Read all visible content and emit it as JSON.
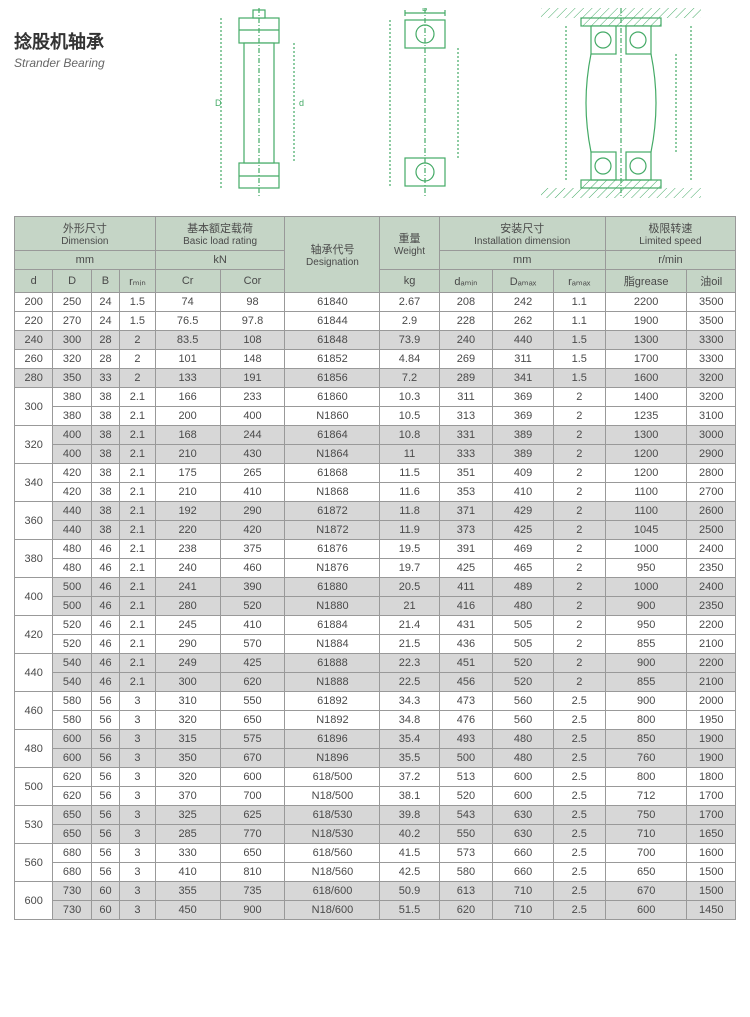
{
  "title": {
    "cn": "捻股机轴承",
    "en": "Strander Bearing"
  },
  "headers": {
    "group1": {
      "cn": "外形尺寸",
      "en": "Dimension",
      "unit": "mm"
    },
    "group2": {
      "cn": "基本额定载荷",
      "en": "Basic load rating",
      "unit": "kN"
    },
    "designation": {
      "cn": "轴承代号",
      "en": "Designation"
    },
    "weight": {
      "cn": "重量",
      "en": "Weight",
      "unit": "kg"
    },
    "group3": {
      "cn": "安装尺寸",
      "en": "Installation dimension",
      "unit": "mm"
    },
    "group4": {
      "cn": "极限转速",
      "en": "Limited speed",
      "unit": "r/min"
    },
    "cols": {
      "d": "d",
      "D": "D",
      "B": "B",
      "rmin": "rₘᵢₙ",
      "Cr": "Cr",
      "Cor": "Cor",
      "damin": "dₐₘᵢₙ",
      "Damax": "Dₐₘₐₓ",
      "ramax": "rₐₘₐₓ",
      "grease": "脂grease",
      "oil": "油oil"
    }
  },
  "rows": [
    {
      "d": "200",
      "D": "250",
      "B": "24",
      "rmin": "1.5",
      "Cr": "74",
      "Cor": "98",
      "des": "61840",
      "kg": "2.67",
      "damin": "208",
      "Damax": "242",
      "ramax": "1.1",
      "grease": "2200",
      "oil": "3500",
      "shade": false,
      "merge": 1
    },
    {
      "d": "220",
      "D": "270",
      "B": "24",
      "rmin": "1.5",
      "Cr": "76.5",
      "Cor": "97.8",
      "des": "61844",
      "kg": "2.9",
      "damin": "228",
      "Damax": "262",
      "ramax": "1.1",
      "grease": "1900",
      "oil": "3500",
      "shade": false,
      "merge": 1
    },
    {
      "d": "240",
      "D": "300",
      "B": "28",
      "rmin": "2",
      "Cr": "83.5",
      "Cor": "108",
      "des": "61848",
      "kg": "73.9",
      "damin": "240",
      "Damax": "440",
      "ramax": "1.5",
      "grease": "1300",
      "oil": "3300",
      "shade": true,
      "merge": 1
    },
    {
      "d": "260",
      "D": "320",
      "B": "28",
      "rmin": "2",
      "Cr": "101",
      "Cor": "148",
      "des": "61852",
      "kg": "4.84",
      "damin": "269",
      "Damax": "311",
      "ramax": "1.5",
      "grease": "1700",
      "oil": "3300",
      "shade": false,
      "merge": 1
    },
    {
      "d": "280",
      "D": "350",
      "B": "33",
      "rmin": "2",
      "Cr": "133",
      "Cor": "191",
      "des": "61856",
      "kg": "7.2",
      "damin": "289",
      "Damax": "341",
      "ramax": "1.5",
      "grease": "1600",
      "oil": "3200",
      "shade": true,
      "merge": 1
    },
    {
      "d": "300",
      "D": "380",
      "B": "38",
      "rmin": "2.1",
      "Cr": "166",
      "Cor": "233",
      "des": "61860",
      "kg": "10.3",
      "damin": "311",
      "Damax": "369",
      "ramax": "2",
      "grease": "1400",
      "oil": "3200",
      "shade": false,
      "merge": 2
    },
    {
      "d": "",
      "D": "380",
      "B": "38",
      "rmin": "2.1",
      "Cr": "200",
      "Cor": "400",
      "des": "N1860",
      "kg": "10.5",
      "damin": "313",
      "Damax": "369",
      "ramax": "2",
      "grease": "1235",
      "oil": "3100",
      "shade": false,
      "merge": 0
    },
    {
      "d": "320",
      "D": "400",
      "B": "38",
      "rmin": "2.1",
      "Cr": "168",
      "Cor": "244",
      "des": "61864",
      "kg": "10.8",
      "damin": "331",
      "Damax": "389",
      "ramax": "2",
      "grease": "1300",
      "oil": "3000",
      "shade": true,
      "merge": 2
    },
    {
      "d": "",
      "D": "400",
      "B": "38",
      "rmin": "2.1",
      "Cr": "210",
      "Cor": "430",
      "des": "N1864",
      "kg": "11",
      "damin": "333",
      "Damax": "389",
      "ramax": "2",
      "grease": "1200",
      "oil": "2900",
      "shade": true,
      "merge": 0
    },
    {
      "d": "340",
      "D": "420",
      "B": "38",
      "rmin": "2.1",
      "Cr": "175",
      "Cor": "265",
      "des": "61868",
      "kg": "11.5",
      "damin": "351",
      "Damax": "409",
      "ramax": "2",
      "grease": "1200",
      "oil": "2800",
      "shade": false,
      "merge": 2
    },
    {
      "d": "",
      "D": "420",
      "B": "38",
      "rmin": "2.1",
      "Cr": "210",
      "Cor": "410",
      "des": "N1868",
      "kg": "11.6",
      "damin": "353",
      "Damax": "410",
      "ramax": "2",
      "grease": "1100",
      "oil": "2700",
      "shade": false,
      "merge": 0
    },
    {
      "d": "360",
      "D": "440",
      "B": "38",
      "rmin": "2.1",
      "Cr": "192",
      "Cor": "290",
      "des": "61872",
      "kg": "11.8",
      "damin": "371",
      "Damax": "429",
      "ramax": "2",
      "grease": "1100",
      "oil": "2600",
      "shade": true,
      "merge": 2
    },
    {
      "d": "",
      "D": "440",
      "B": "38",
      "rmin": "2.1",
      "Cr": "220",
      "Cor": "420",
      "des": "N1872",
      "kg": "11.9",
      "damin": "373",
      "Damax": "425",
      "ramax": "2",
      "grease": "1045",
      "oil": "2500",
      "shade": true,
      "merge": 0
    },
    {
      "d": "380",
      "D": "480",
      "B": "46",
      "rmin": "2.1",
      "Cr": "238",
      "Cor": "375",
      "des": "61876",
      "kg": "19.5",
      "damin": "391",
      "Damax": "469",
      "ramax": "2",
      "grease": "1000",
      "oil": "2400",
      "shade": false,
      "merge": 2
    },
    {
      "d": "",
      "D": "480",
      "B": "46",
      "rmin": "2.1",
      "Cr": "240",
      "Cor": "460",
      "des": "N1876",
      "kg": "19.7",
      "damin": "425",
      "Damax": "465",
      "ramax": "2",
      "grease": "950",
      "oil": "2350",
      "shade": false,
      "merge": 0
    },
    {
      "d": "400",
      "D": "500",
      "B": "46",
      "rmin": "2.1",
      "Cr": "241",
      "Cor": "390",
      "des": "61880",
      "kg": "20.5",
      "damin": "411",
      "Damax": "489",
      "ramax": "2",
      "grease": "1000",
      "oil": "2400",
      "shade": true,
      "merge": 2
    },
    {
      "d": "",
      "D": "500",
      "B": "46",
      "rmin": "2.1",
      "Cr": "280",
      "Cor": "520",
      "des": "N1880",
      "kg": "21",
      "damin": "416",
      "Damax": "480",
      "ramax": "2",
      "grease": "900",
      "oil": "2350",
      "shade": true,
      "merge": 0
    },
    {
      "d": "420",
      "D": "520",
      "B": "46",
      "rmin": "2.1",
      "Cr": "245",
      "Cor": "410",
      "des": "61884",
      "kg": "21.4",
      "damin": "431",
      "Damax": "505",
      "ramax": "2",
      "grease": "950",
      "oil": "2200",
      "shade": false,
      "merge": 2
    },
    {
      "d": "",
      "D": "520",
      "B": "46",
      "rmin": "2.1",
      "Cr": "290",
      "Cor": "570",
      "des": "N1884",
      "kg": "21.5",
      "damin": "436",
      "Damax": "505",
      "ramax": "2",
      "grease": "855",
      "oil": "2100",
      "shade": false,
      "merge": 0
    },
    {
      "d": "440",
      "D": "540",
      "B": "46",
      "rmin": "2.1",
      "Cr": "249",
      "Cor": "425",
      "des": "61888",
      "kg": "22.3",
      "damin": "451",
      "Damax": "520",
      "ramax": "2",
      "grease": "900",
      "oil": "2200",
      "shade": true,
      "merge": 2
    },
    {
      "d": "",
      "D": "540",
      "B": "46",
      "rmin": "2.1",
      "Cr": "300",
      "Cor": "620",
      "des": "N1888",
      "kg": "22.5",
      "damin": "456",
      "Damax": "520",
      "ramax": "2",
      "grease": "855",
      "oil": "2100",
      "shade": true,
      "merge": 0
    },
    {
      "d": "460",
      "D": "580",
      "B": "56",
      "rmin": "3",
      "Cr": "310",
      "Cor": "550",
      "des": "61892",
      "kg": "34.3",
      "damin": "473",
      "Damax": "560",
      "ramax": "2.5",
      "grease": "900",
      "oil": "2000",
      "shade": false,
      "merge": 2
    },
    {
      "d": "",
      "D": "580",
      "B": "56",
      "rmin": "3",
      "Cr": "320",
      "Cor": "650",
      "des": "N1892",
      "kg": "34.8",
      "damin": "476",
      "Damax": "560",
      "ramax": "2.5",
      "grease": "800",
      "oil": "1950",
      "shade": false,
      "merge": 0
    },
    {
      "d": "480",
      "D": "600",
      "B": "56",
      "rmin": "3",
      "Cr": "315",
      "Cor": "575",
      "des": "61896",
      "kg": "35.4",
      "damin": "493",
      "Damax": "480",
      "ramax": "2.5",
      "grease": "850",
      "oil": "1900",
      "shade": true,
      "merge": 2
    },
    {
      "d": "",
      "D": "600",
      "B": "56",
      "rmin": "3",
      "Cr": "350",
      "Cor": "670",
      "des": "N1896",
      "kg": "35.5",
      "damin": "500",
      "Damax": "480",
      "ramax": "2.5",
      "grease": "760",
      "oil": "1900",
      "shade": true,
      "merge": 0
    },
    {
      "d": "500",
      "D": "620",
      "B": "56",
      "rmin": "3",
      "Cr": "320",
      "Cor": "600",
      "des": "618/500",
      "kg": "37.2",
      "damin": "513",
      "Damax": "600",
      "ramax": "2.5",
      "grease": "800",
      "oil": "1800",
      "shade": false,
      "merge": 2
    },
    {
      "d": "",
      "D": "620",
      "B": "56",
      "rmin": "3",
      "Cr": "370",
      "Cor": "700",
      "des": "N18/500",
      "kg": "38.1",
      "damin": "520",
      "Damax": "600",
      "ramax": "2.5",
      "grease": "712",
      "oil": "1700",
      "shade": false,
      "merge": 0
    },
    {
      "d": "530",
      "D": "650",
      "B": "56",
      "rmin": "3",
      "Cr": "325",
      "Cor": "625",
      "des": "618/530",
      "kg": "39.8",
      "damin": "543",
      "Damax": "630",
      "ramax": "2.5",
      "grease": "750",
      "oil": "1700",
      "shade": true,
      "merge": 2
    },
    {
      "d": "",
      "D": "650",
      "B": "56",
      "rmin": "3",
      "Cr": "285",
      "Cor": "770",
      "des": "N18/530",
      "kg": "40.2",
      "damin": "550",
      "Damax": "630",
      "ramax": "2.5",
      "grease": "710",
      "oil": "1650",
      "shade": true,
      "merge": 0
    },
    {
      "d": "560",
      "D": "680",
      "B": "56",
      "rmin": "3",
      "Cr": "330",
      "Cor": "650",
      "des": "618/560",
      "kg": "41.5",
      "damin": "573",
      "Damax": "660",
      "ramax": "2.5",
      "grease": "700",
      "oil": "1600",
      "shade": false,
      "merge": 2
    },
    {
      "d": "",
      "D": "680",
      "B": "56",
      "rmin": "3",
      "Cr": "410",
      "Cor": "810",
      "des": "N18/560",
      "kg": "42.5",
      "damin": "580",
      "Damax": "660",
      "ramax": "2.5",
      "grease": "650",
      "oil": "1500",
      "shade": false,
      "merge": 0
    },
    {
      "d": "600",
      "D": "730",
      "B": "60",
      "rmin": "3",
      "Cr": "355",
      "Cor": "735",
      "des": "618/600",
      "kg": "50.9",
      "damin": "613",
      "Damax": "710",
      "ramax": "2.5",
      "grease": "670",
      "oil": "1500",
      "shade": true,
      "merge": 2
    },
    {
      "d": "",
      "D": "730",
      "B": "60",
      "rmin": "3",
      "Cr": "450",
      "Cor": "900",
      "des": "N18/600",
      "kg": "51.5",
      "damin": "620",
      "Damax": "710",
      "ramax": "2.5",
      "grease": "600",
      "oil": "1450",
      "shade": true,
      "merge": 0
    }
  ]
}
